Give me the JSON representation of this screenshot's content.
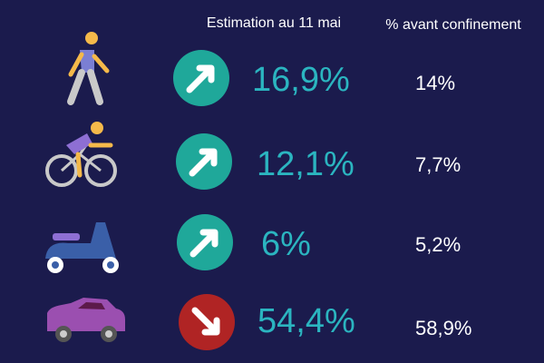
{
  "header": {
    "estimate": "Estimation au 11 mai",
    "before": "% avant confinement"
  },
  "rows": [
    {
      "estimate": "16,9%",
      "before": "14%"
    },
    {
      "estimate": "12,1%",
      "before": "7,7%"
    },
    {
      "estimate": "6%",
      "before": "5,2%"
    },
    {
      "estimate": "54,4%",
      "before": "58,9%"
    }
  ]
}
